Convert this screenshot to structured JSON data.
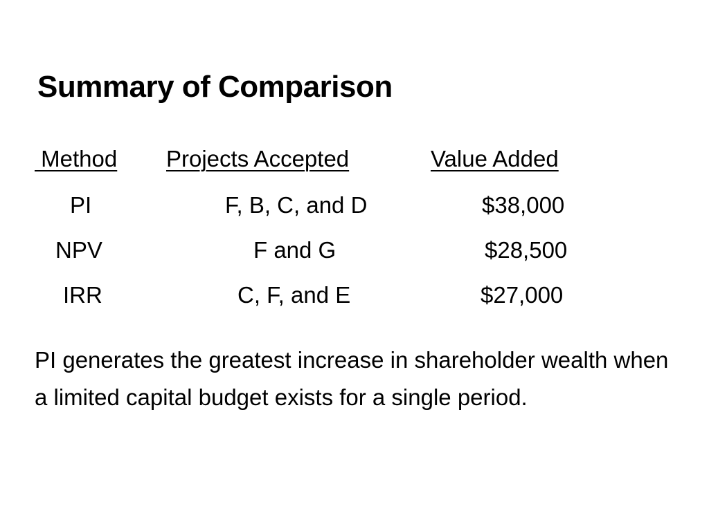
{
  "slide": {
    "title": "Summary of Comparison",
    "table": {
      "headers": {
        "method": " Method",
        "projects": "Projects Accepted",
        "value": "Value Added"
      },
      "rows": [
        {
          "method": "PI",
          "projects": "F, B, C, and D",
          "value": "$38,000"
        },
        {
          "method": "NPV",
          "projects": "F and G",
          "value": "$28,500"
        },
        {
          "method": "IRR",
          "projects": "C, F, and E",
          "value": "$27,000"
        }
      ]
    },
    "conclusion": "PI generates the greatest increase in shareholder wealth when a limited capital budget exists for a single period."
  }
}
